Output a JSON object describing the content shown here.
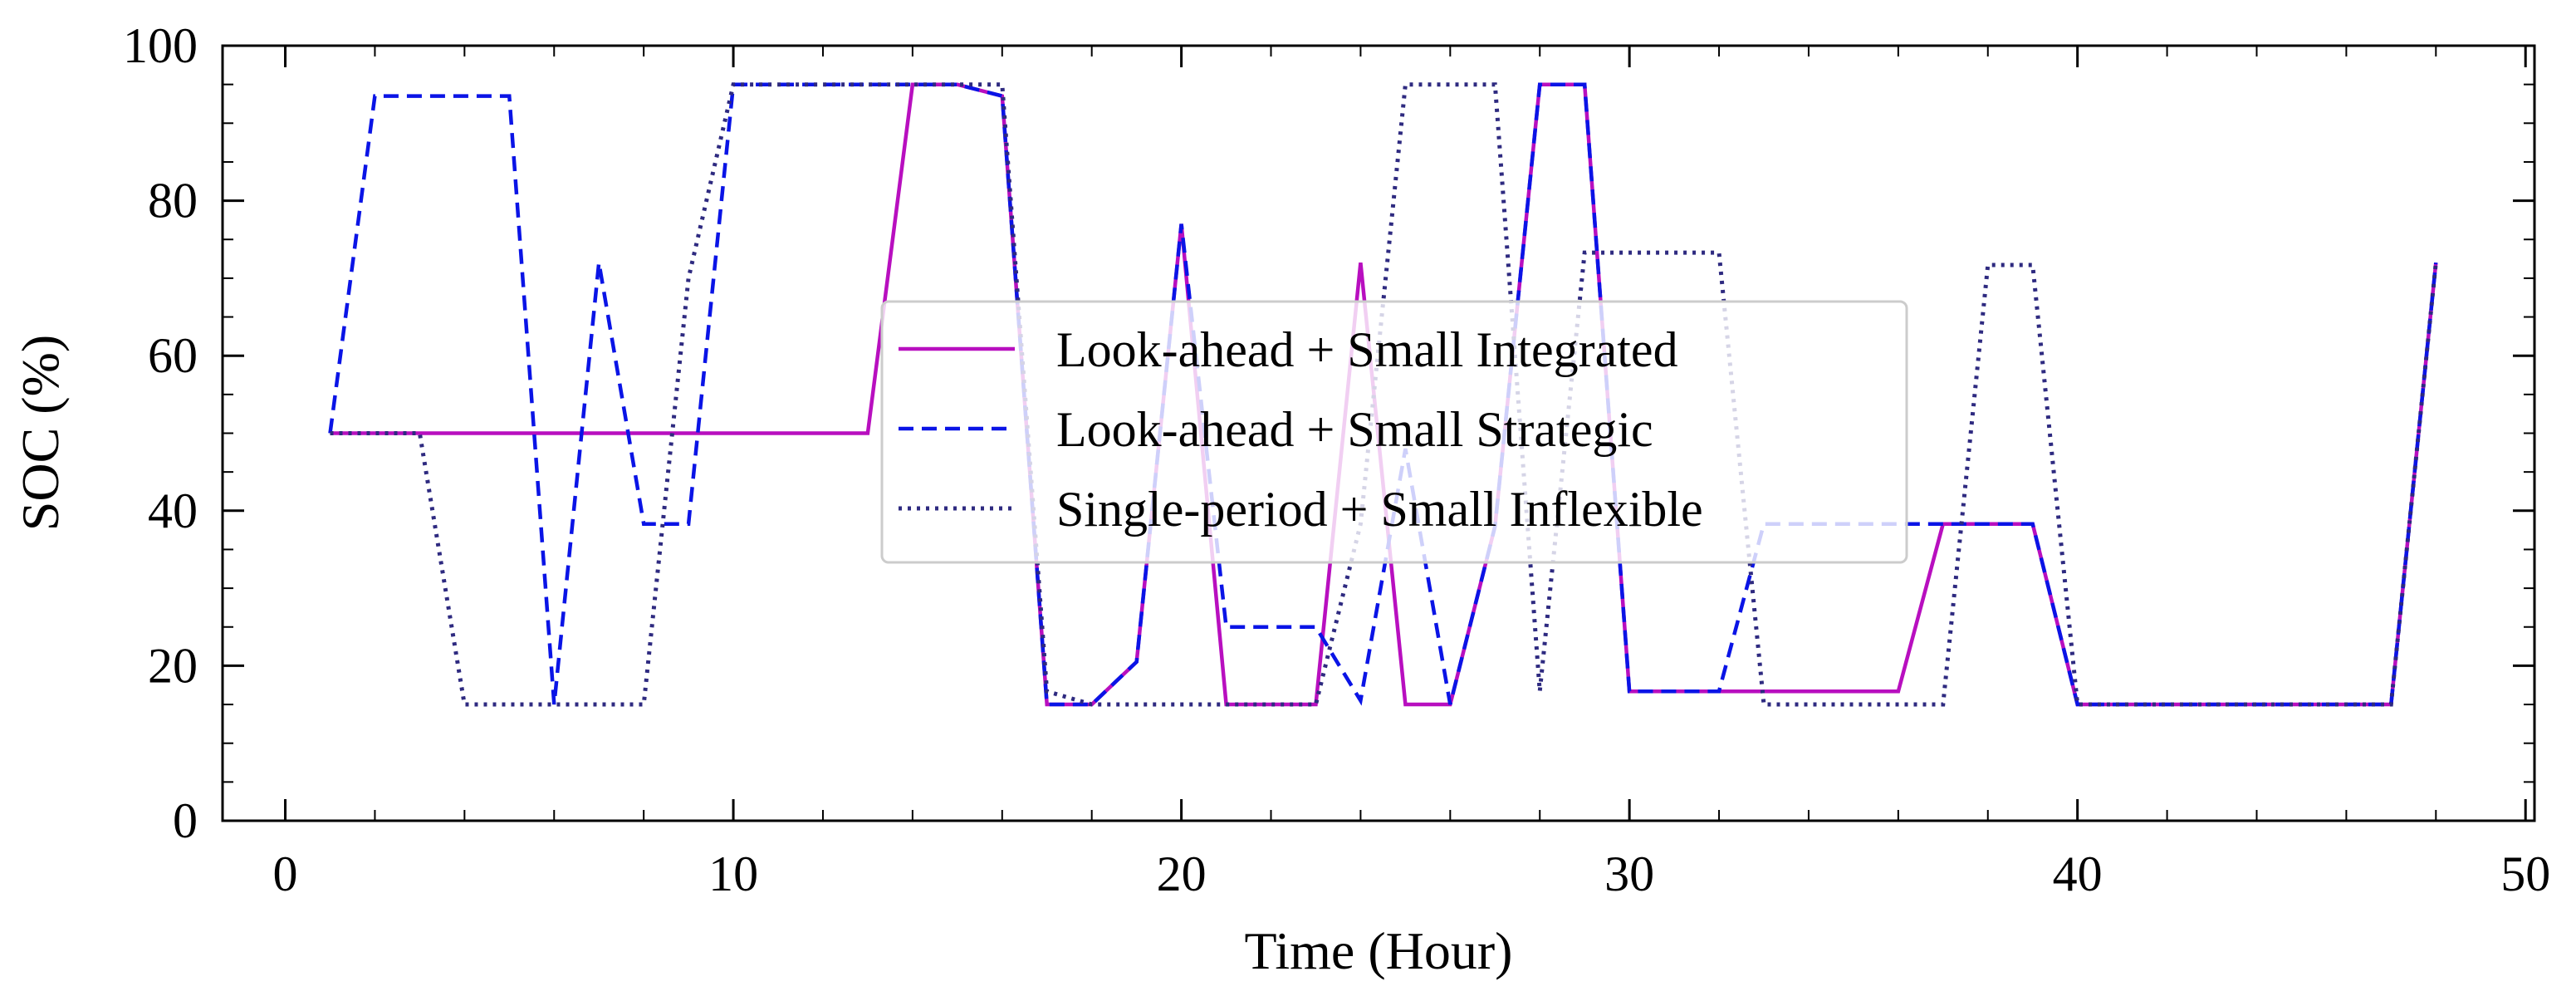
{
  "chart_data": {
    "type": "line",
    "title": "",
    "xlabel": "Time (Hour)",
    "ylabel": "SOC (%)",
    "xlim": [
      -1.4,
      50.2
    ],
    "ylim": [
      0,
      100
    ],
    "xticks": [
      0,
      10,
      20,
      30,
      40,
      50
    ],
    "yticks": [
      0,
      20,
      40,
      60,
      80,
      100
    ],
    "grid": false,
    "legend_position": "center",
    "series": [
      {
        "name": "Look-ahead + Small Integrated",
        "color": "#b80fbf",
        "linestyle": "solid",
        "x": [
          1,
          2,
          3,
          4,
          5,
          6,
          7,
          8,
          9,
          10,
          11,
          12,
          13,
          14,
          15,
          16,
          17,
          18,
          19,
          20,
          21,
          22,
          23,
          24,
          25,
          26,
          27,
          28,
          29,
          30,
          31,
          32,
          33,
          34,
          35,
          36,
          37,
          38,
          39,
          40,
          41,
          42,
          43,
          44,
          45,
          46,
          47,
          48
        ],
        "y": [
          50,
          50,
          50,
          50,
          50,
          50,
          50,
          50,
          50,
          50,
          50,
          50,
          50,
          95,
          95,
          93.5,
          15,
          15,
          20.5,
          77,
          15,
          15,
          15,
          72,
          15,
          15,
          38,
          95,
          95,
          16.7,
          16.7,
          16.7,
          16.7,
          16.7,
          16.7,
          16.7,
          38.3,
          38.3,
          38.3,
          15,
          15,
          15,
          15,
          15,
          15,
          15,
          15,
          72
        ]
      },
      {
        "name": "Look-ahead + Small Strategic",
        "color": "#0a14e6",
        "linestyle": "dashed",
        "x": [
          1,
          2,
          3,
          4,
          5,
          6,
          7,
          8,
          9,
          10,
          11,
          12,
          13,
          14,
          15,
          16,
          17,
          18,
          19,
          20,
          21,
          22,
          23,
          24,
          25,
          26,
          27,
          28,
          29,
          30,
          31,
          32,
          33,
          34,
          35,
          36,
          37,
          38,
          39,
          40,
          41,
          42,
          43,
          44,
          45,
          46,
          47,
          48
        ],
        "y": [
          50,
          93.5,
          93.5,
          93.5,
          93.5,
          15,
          72,
          38.3,
          38.3,
          95,
          95,
          95,
          95,
          95,
          95,
          93.5,
          15,
          15,
          20.5,
          77,
          25,
          25,
          25,
          15.5,
          48,
          15,
          38,
          95,
          95,
          16.7,
          16.7,
          16.7,
          38.3,
          38.3,
          38.3,
          38.3,
          38.3,
          38.3,
          38.3,
          15,
          15,
          15,
          15,
          15,
          15,
          15,
          15,
          72
        ]
      },
      {
        "name": "Single-period + Small Inflexible",
        "color": "#2e2a80",
        "linestyle": "dotted",
        "x": [
          1,
          2,
          3,
          4,
          5,
          6,
          7,
          8,
          9,
          10,
          11,
          12,
          13,
          14,
          15,
          16,
          17,
          18,
          19,
          20,
          21,
          22,
          23,
          24,
          25,
          26,
          27,
          28,
          29,
          30,
          31,
          32,
          33,
          34,
          35,
          36,
          37,
          38,
          39,
          40,
          41,
          42,
          43,
          44,
          45,
          46,
          47,
          48
        ],
        "y": [
          50,
          50,
          50,
          15,
          15,
          15,
          15,
          15,
          70,
          95,
          95,
          95,
          95,
          95,
          95,
          95,
          16.7,
          15,
          15,
          15,
          15,
          15,
          15,
          38.3,
          95,
          95,
          95,
          16.7,
          73.3,
          73.3,
          73.3,
          73.3,
          15,
          15,
          15,
          15,
          15,
          71.7,
          71.7,
          15,
          15,
          15,
          15,
          15,
          15,
          15,
          15,
          72
        ]
      }
    ]
  }
}
